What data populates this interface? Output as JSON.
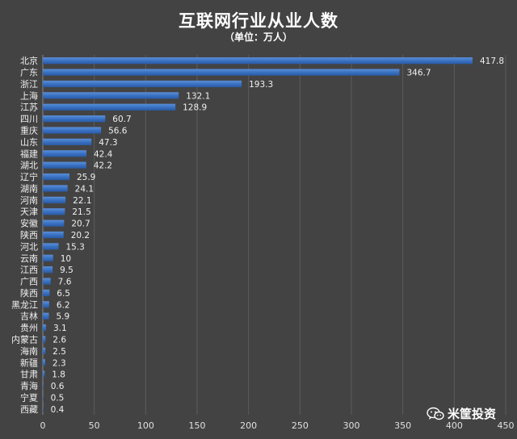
{
  "chart_data": {
    "type": "bar",
    "orientation": "horizontal",
    "title": "互联网行业从业人数",
    "subtitle": "（单位：万人）",
    "categories": [
      "北京",
      "广东",
      "浙江",
      "上海",
      "江苏",
      "四川",
      "重庆",
      "山东",
      "福建",
      "湖北",
      "辽宁",
      "湖南",
      "河南",
      "天津",
      "安徽",
      "陕西",
      "河北",
      "云南",
      "江西",
      "广西",
      "陕西",
      "黑龙江",
      "吉林",
      "贵州",
      "内蒙古",
      "海南",
      "新疆",
      "甘肃",
      "青海",
      "宁夏",
      "西藏"
    ],
    "values": [
      417.8,
      346.7,
      193.3,
      132.1,
      128.9,
      60.7,
      56.6,
      47.3,
      42.4,
      42.2,
      25.9,
      24.1,
      22.1,
      21.5,
      20.7,
      20.2,
      15.3,
      10,
      9.5,
      7.6,
      6.5,
      6.2,
      5.9,
      3.1,
      2.6,
      2.5,
      2.3,
      1.8,
      0.6,
      0.5,
      0.4
    ],
    "value_labels": [
      "417.8",
      "346.7",
      "193.3",
      "132.1",
      "128.9",
      "60.7",
      "56.6",
      "47.3",
      "42.4",
      "42.2",
      "25.9",
      "24.1",
      "22.1",
      "21.5",
      "20.7",
      "20.2",
      "15.3",
      "10",
      "9.5",
      "7.6",
      "6.5",
      "6.2",
      "5.9",
      "3.1",
      "2.6",
      "2.5",
      "2.3",
      "1.8",
      "0.6",
      "0.5",
      "0.4"
    ],
    "xlim": [
      0,
      450
    ],
    "xticks": [
      "0",
      "50",
      "100",
      "150",
      "200",
      "250",
      "300",
      "350",
      "400",
      "450"
    ],
    "xtick_values": [
      0,
      50,
      100,
      150,
      200,
      250,
      300,
      350,
      400,
      450
    ],
    "grid": true,
    "bar_color": "#3a72c4"
  },
  "watermark": {
    "text": "米筐投资",
    "icon": "wechat-icon"
  }
}
